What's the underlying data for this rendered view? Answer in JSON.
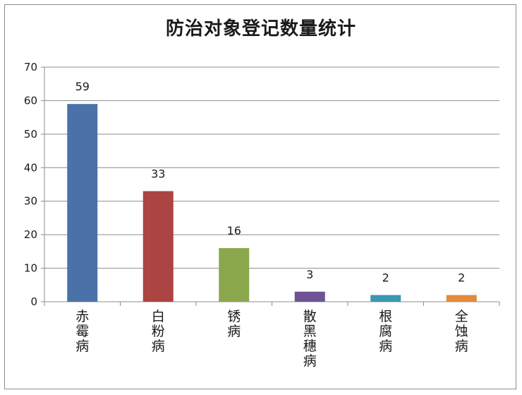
{
  "chart_data": {
    "type": "bar",
    "title": "防治对象登记数量统计",
    "categories": [
      "赤霉病",
      "白粉病",
      "锈病",
      "散黑穗病",
      "根腐病",
      "全蚀病"
    ],
    "values": [
      59,
      33,
      16,
      3,
      2,
      2
    ],
    "colors": [
      "#4a72a8",
      "#ab4442",
      "#8ba74c",
      "#6e5394",
      "#3b98b0",
      "#e48a3b"
    ],
    "ylim": [
      0,
      70
    ],
    "yticks": [
      0,
      10,
      20,
      30,
      40,
      50,
      60,
      70
    ],
    "grid": true,
    "legend": "none",
    "data_labels": true
  }
}
